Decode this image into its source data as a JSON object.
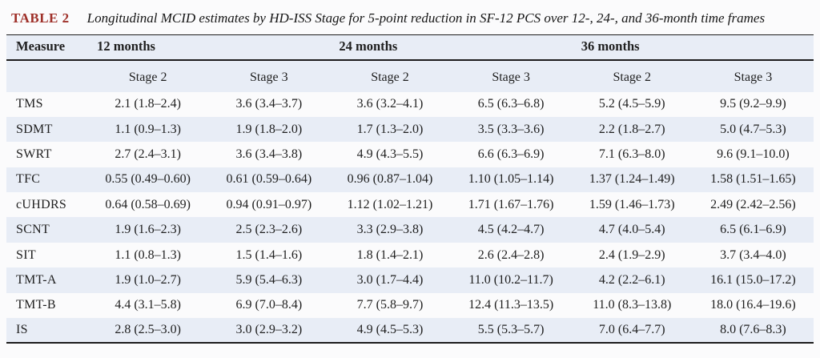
{
  "table": {
    "label": "TABLE 2",
    "caption": "Longitudinal MCID estimates by HD-ISS Stage for 5-point reduction in SF-12 PCS over 12-, 24-, and 36-month time frames",
    "measure_header": "Measure",
    "month_groups": [
      "12 months",
      "24 months",
      "36 months"
    ],
    "stage_headers": [
      "Stage 2",
      "Stage 3",
      "Stage 2",
      "Stage 3",
      "Stage 2",
      "Stage 3"
    ],
    "rows": [
      {
        "measure": "TMS",
        "values": [
          "2.1 (1.8–2.4)",
          "3.6 (3.4–3.7)",
          "3.6 (3.2–4.1)",
          "6.5 (6.3–6.8)",
          "5.2 (4.5–5.9)",
          "9.5 (9.2–9.9)"
        ]
      },
      {
        "measure": "SDMT",
        "values": [
          "1.1 (0.9–1.3)",
          "1.9 (1.8–2.0)",
          "1.7 (1.3–2.0)",
          "3.5 (3.3–3.6)",
          "2.2 (1.8–2.7)",
          "5.0 (4.7–5.3)"
        ]
      },
      {
        "measure": "SWRT",
        "values": [
          "2.7 (2.4–3.1)",
          "3.6 (3.4–3.8)",
          "4.9 (4.3–5.5)",
          "6.6 (6.3–6.9)",
          "7.1 (6.3–8.0)",
          "9.6 (9.1–10.0)"
        ]
      },
      {
        "measure": "TFC",
        "values": [
          "0.55 (0.49–0.60)",
          "0.61 (0.59–0.64)",
          "0.96 (0.87–1.04)",
          "1.10 (1.05–1.14)",
          "1.37 (1.24–1.49)",
          "1.58 (1.51–1.65)"
        ]
      },
      {
        "measure": "cUHDRS",
        "values": [
          "0.64 (0.58–0.69)",
          "0.94 (0.91–0.97)",
          "1.12 (1.02–1.21)",
          "1.71 (1.67–1.76)",
          "1.59 (1.46–1.73)",
          "2.49 (2.42–2.56)"
        ]
      },
      {
        "measure": "SCNT",
        "values": [
          "1.9 (1.6–2.3)",
          "2.5 (2.3–2.6)",
          "3.3 (2.9–3.8)",
          "4.5 (4.2–4.7)",
          "4.7 (4.0–5.4)",
          "6.5 (6.1–6.9)"
        ]
      },
      {
        "measure": "SIT",
        "values": [
          "1.1 (0.8–1.3)",
          "1.5 (1.4–1.6)",
          "1.8 (1.4–2.1)",
          "2.6 (2.4–2.8)",
          "2.4 (1.9–2.9)",
          "3.7 (3.4–4.0)"
        ]
      },
      {
        "measure": "TMT-A",
        "values": [
          "1.9 (1.0–2.7)",
          "5.9 (5.4–6.3)",
          "3.0 (1.7–4.4)",
          "11.0 (10.2–11.7)",
          "4.2 (2.2–6.1)",
          "16.1 (15.0–17.2)"
        ]
      },
      {
        "measure": "TMT-B",
        "values": [
          "4.4 (3.1–5.8)",
          "6.9 (7.0–8.4)",
          "7.7 (5.8–9.7)",
          "12.4 (11.3–13.5)",
          "11.0 (8.3–13.8)",
          "18.0 (16.4–19.6)"
        ]
      },
      {
        "measure": "IS",
        "values": [
          "2.8 (2.5–3.0)",
          "3.0 (2.9–3.2)",
          "4.9 (4.5–5.3)",
          "5.5 (5.3–5.7)",
          "7.0 (6.4–7.7)",
          "8.0 (7.6–8.3)"
        ]
      }
    ]
  },
  "colors": {
    "band_blue": "#e8edf6",
    "accent_red": "#9e2f28",
    "rule_black": "#1c1c1c",
    "page_background": "#fbfbfc"
  }
}
